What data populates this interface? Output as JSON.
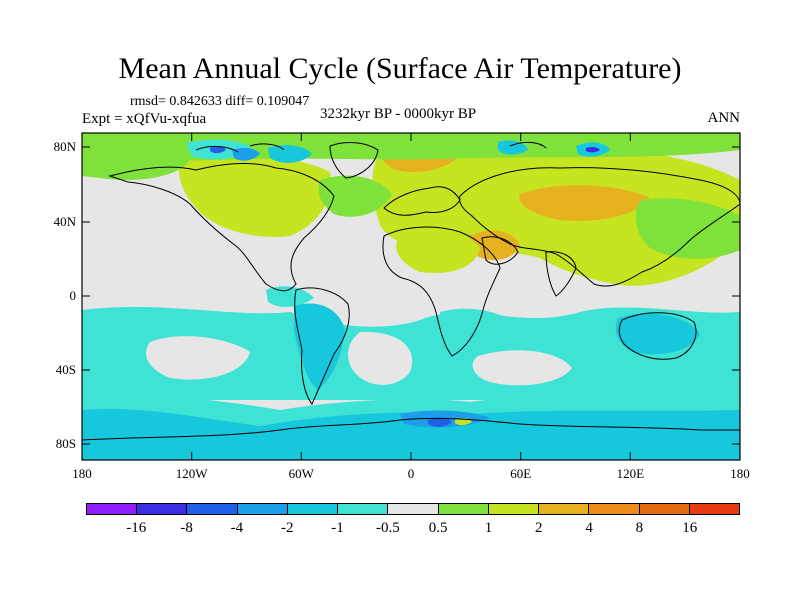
{
  "title": "Mean Annual Cycle (Surface Air Temperature)",
  "stats": "rmsd= 0.842633 diff= 0.109047",
  "experiment": "Expt = xQfVu-xqfua",
  "period": "3232kyr BP - 0000kyr BP",
  "season": "ANN",
  "y_axis_labels": [
    "80N",
    "40N",
    "0",
    "40S",
    "80S"
  ],
  "x_axis_labels": [
    "180",
    "120W",
    "60W",
    "0",
    "60E",
    "120E",
    "180"
  ],
  "colorbar": {
    "labels": [
      "-16",
      "-8",
      "-4",
      "-2",
      "-1",
      "-0.5",
      "0.5",
      "1",
      "2",
      "4",
      "8",
      "16"
    ],
    "colors": [
      "#8f1fff",
      "#3a2ee0",
      "#1f60e6",
      "#1c9ee8",
      "#17c8dc",
      "#3ee3d6",
      "#e6e6e6",
      "#7ee23a",
      "#c6e41f",
      "#e6b11f",
      "#ec8a1a",
      "#e46a14",
      "#e53a12"
    ]
  },
  "palette": {
    "land_outline": "#000000",
    "neutral": "#e6e6e6",
    "cool_light": "#3ee3d6",
    "cool_mid": "#17c8dc",
    "cool_deep": "#1c9ee8",
    "cool_blue": "#1f60e6",
    "cool_dark": "#3a2ee0",
    "warm_light": "#7ee23a",
    "warm_mid": "#c6e41f",
    "warm_orange": "#e6b11f"
  }
}
